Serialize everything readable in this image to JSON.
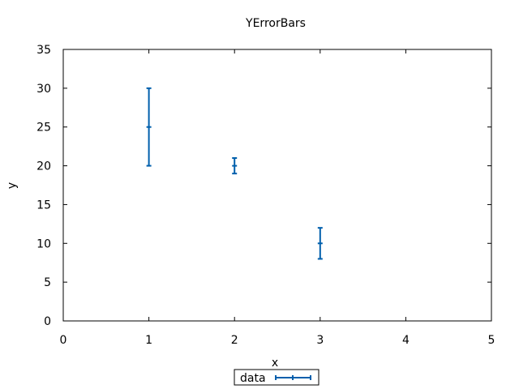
{
  "chart_data": {
    "type": "errorbar",
    "title": "YErrorBars",
    "xlabel": "x",
    "ylabel": "y",
    "xlim": [
      0,
      5
    ],
    "ylim": [
      0,
      35
    ],
    "xticks": [
      0,
      1,
      2,
      3,
      4,
      5
    ],
    "yticks": [
      0,
      5,
      10,
      15,
      20,
      25,
      30,
      35
    ],
    "grid": false,
    "legend_position": "bottom-center",
    "series": [
      {
        "name": "data",
        "color": "#005fac",
        "points": [
          {
            "x": 1,
            "y": 25,
            "ylow": 20,
            "yhigh": 30
          },
          {
            "x": 2,
            "y": 20,
            "ylow": 19,
            "yhigh": 21
          },
          {
            "x": 3,
            "y": 10,
            "ylow": 8,
            "yhigh": 12
          }
        ]
      }
    ]
  }
}
